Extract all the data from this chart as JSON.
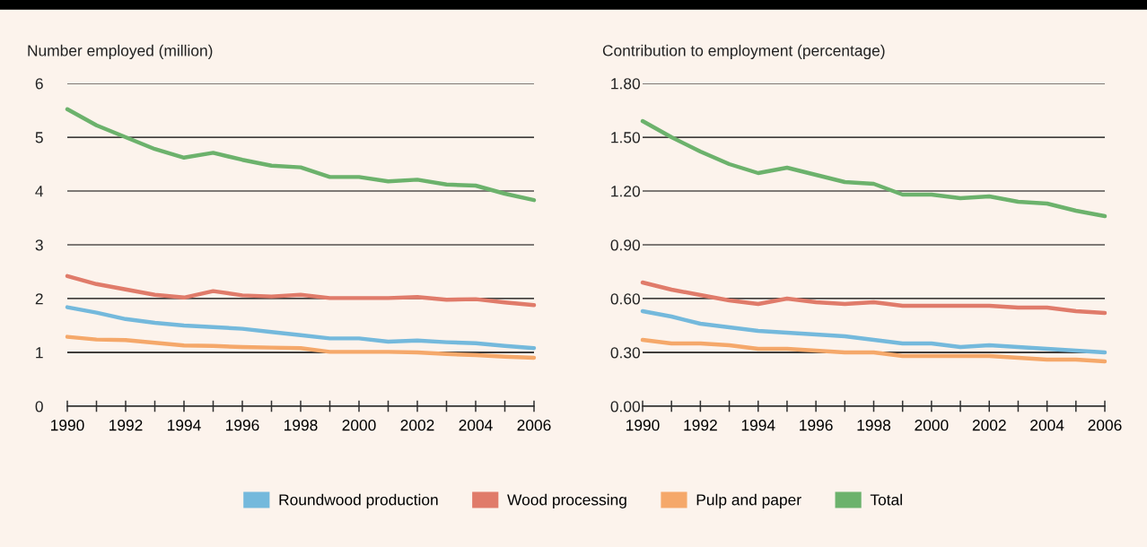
{
  "chart_data": [
    {
      "type": "line",
      "ylabel": "Number employed (million)",
      "x": [
        1990,
        1991,
        1992,
        1993,
        1994,
        1995,
        1996,
        1997,
        1998,
        1999,
        2000,
        2001,
        2002,
        2003,
        2004,
        2005,
        2006
      ],
      "series": [
        {
          "name": "Roundwood production",
          "color": "#74b9dc",
          "values": [
            1.84,
            1.74,
            1.62,
            1.55,
            1.5,
            1.47,
            1.44,
            1.38,
            1.32,
            1.26,
            1.26,
            1.2,
            1.22,
            1.19,
            1.17,
            1.12,
            1.08
          ]
        },
        {
          "name": "Wood processing",
          "color": "#e07b6a",
          "values": [
            2.42,
            2.27,
            2.17,
            2.07,
            2.02,
            2.14,
            2.06,
            2.04,
            2.07,
            2.01,
            2.01,
            2.01,
            2.03,
            1.98,
            1.99,
            1.93,
            1.88
          ]
        },
        {
          "name": "Pulp and paper",
          "color": "#f5a86a",
          "values": [
            1.29,
            1.24,
            1.23,
            1.18,
            1.13,
            1.12,
            1.1,
            1.09,
            1.08,
            1.01,
            1.01,
            1.01,
            1.0,
            0.97,
            0.95,
            0.92,
            0.9
          ]
        },
        {
          "name": "Total",
          "color": "#6cb26c",
          "values": [
            5.52,
            5.22,
            5.0,
            4.78,
            4.62,
            4.71,
            4.58,
            4.47,
            4.44,
            4.26,
            4.26,
            4.18,
            4.21,
            4.12,
            4.1,
            3.95,
            3.83
          ]
        }
      ],
      "xlim": [
        1990,
        2006
      ],
      "ylim": [
        0,
        6
      ],
      "yticks": [
        0,
        1,
        2,
        3,
        4,
        5,
        6
      ],
      "xticks": [
        1990,
        {
          "value": 1991,
          "label": null
        },
        1992,
        {
          "value": 1993,
          "label": null
        },
        1994,
        {
          "value": 1995,
          "label": null
        },
        1996,
        {
          "value": 1997,
          "label": null
        },
        1998,
        {
          "value": 1999,
          "label": null
        },
        2000,
        {
          "value": 2001,
          "label": null
        },
        2002,
        {
          "value": 2003,
          "label": null
        },
        2004,
        {
          "value": 2005,
          "label": null
        },
        2006
      ],
      "grid": "y",
      "legend": "bottom",
      "marker": "none",
      "line_style": "solid"
    },
    {
      "type": "line",
      "ylabel": "Contribution to employment (percentage)",
      "x": [
        1990,
        1991,
        1992,
        1993,
        1994,
        1995,
        1996,
        1997,
        1998,
        1999,
        2000,
        2001,
        2002,
        2003,
        2004,
        2005,
        2006
      ],
      "series": [
        {
          "name": "Roundwood production",
          "color": "#74b9dc",
          "values": [
            0.53,
            0.5,
            0.46,
            0.44,
            0.42,
            0.41,
            0.4,
            0.39,
            0.37,
            0.35,
            0.35,
            0.33,
            0.34,
            0.33,
            0.32,
            0.31,
            0.3
          ]
        },
        {
          "name": "Wood processing",
          "color": "#e07b6a",
          "values": [
            0.69,
            0.65,
            0.62,
            0.59,
            0.57,
            0.6,
            0.58,
            0.57,
            0.58,
            0.56,
            0.56,
            0.56,
            0.56,
            0.55,
            0.55,
            0.53,
            0.52
          ]
        },
        {
          "name": "Pulp and paper",
          "color": "#f5a86a",
          "values": [
            0.37,
            0.35,
            0.35,
            0.34,
            0.32,
            0.32,
            0.31,
            0.3,
            0.3,
            0.28,
            0.28,
            0.28,
            0.28,
            0.27,
            0.26,
            0.26,
            0.25
          ]
        },
        {
          "name": "Total",
          "color": "#6cb26c",
          "values": [
            1.59,
            1.5,
            1.42,
            1.35,
            1.3,
            1.33,
            1.29,
            1.25,
            1.24,
            1.18,
            1.18,
            1.16,
            1.17,
            1.14,
            1.13,
            1.09,
            1.06
          ]
        }
      ],
      "xlim": [
        1990,
        2006
      ],
      "ylim": [
        0,
        1.8
      ],
      "yticks": [
        {
          "value": 0,
          "label": "0.00"
        },
        {
          "value": 0.3,
          "label": "0.30"
        },
        {
          "value": 0.6,
          "label": "0.60"
        },
        {
          "value": 0.9,
          "label": "0.90"
        },
        {
          "value": 1.2,
          "label": "1.20"
        },
        {
          "value": 1.5,
          "label": "1.50"
        },
        {
          "value": 1.8,
          "label": "1.80"
        }
      ],
      "xticks": [
        1990,
        {
          "value": 1991,
          "label": null
        },
        1992,
        {
          "value": 1993,
          "label": null
        },
        1994,
        {
          "value": 1995,
          "label": null
        },
        1996,
        {
          "value": 1997,
          "label": null
        },
        1998,
        {
          "value": 1999,
          "label": null
        },
        2000,
        {
          "value": 2001,
          "label": null
        },
        2002,
        {
          "value": 2003,
          "label": null
        },
        2004,
        {
          "value": 2005,
          "label": null
        },
        2006
      ],
      "grid": "y",
      "legend": "bottom",
      "marker": "none",
      "line_style": "solid"
    }
  ]
}
